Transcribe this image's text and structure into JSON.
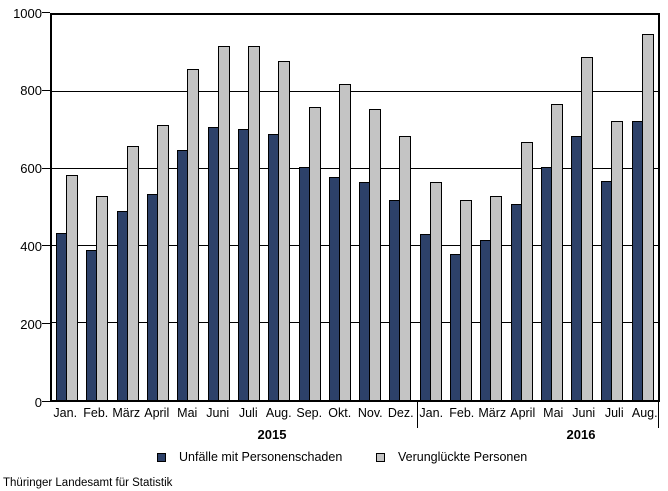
{
  "chart_data": {
    "type": "bar",
    "title": "",
    "categories": [
      "Jan.",
      "Feb.",
      "März",
      "April",
      "Mai",
      "Juni",
      "Juli",
      "Aug.",
      "Sep.",
      "Okt.",
      "Nov.",
      "Dez.",
      "Jan.",
      "Feb.",
      "März",
      "April",
      "Mai",
      "Juni",
      "Juli",
      "Aug."
    ],
    "series": [
      {
        "name": "Unfälle mit Personenschaden",
        "color": "#2d4169",
        "values": [
          435,
          390,
          490,
          535,
          650,
          710,
          705,
          690,
          605,
          580,
          565,
          520,
          430,
          380,
          415,
          510,
          605,
          685,
          570,
          725
        ]
      },
      {
        "name": "Verunglückte Personen",
        "color": "#c4c4c4",
        "values": [
          585,
          530,
          660,
          715,
          860,
          920,
          920,
          880,
          760,
          820,
          755,
          685,
          565,
          520,
          530,
          670,
          770,
          890,
          725,
          950
        ]
      }
    ],
    "ylim": [
      0,
      1000
    ],
    "yticks": [
      0,
      200,
      400,
      600,
      800,
      1000
    ],
    "grid": "horizontal",
    "legend_position": "bottom",
    "year_groups": [
      {
        "label": "2015",
        "months": 12
      },
      {
        "label": "2016",
        "months": 8
      }
    ]
  },
  "footer": {
    "source": "Thüringer  Landesamt für Statistik"
  }
}
